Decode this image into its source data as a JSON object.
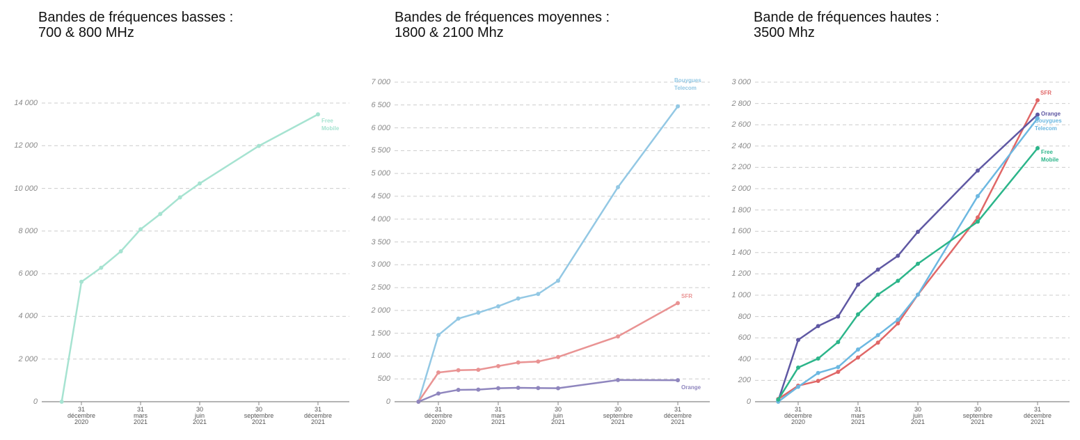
{
  "chart_data": [
    {
      "type": "line",
      "title": "Bandes de fréquences basses :",
      "subtitle": "700 & 800 MHz",
      "x": [
        -1,
        0,
        1,
        2,
        3,
        4,
        5,
        6,
        9,
        12
      ],
      "xlim": [
        -2,
        13.6
      ],
      "xticks": [
        {
          "value": 0,
          "label": "31 décembre 2020"
        },
        {
          "value": 3,
          "label": "31 mars 2021"
        },
        {
          "value": 6,
          "label": "30 juin 2021"
        },
        {
          "value": 9,
          "label": "30 septembre 2021"
        },
        {
          "value": 12,
          "label": "31 décembre 2021"
        }
      ],
      "ylim": [
        0,
        14000
      ],
      "yticks": [
        0,
        {
          "value": 2000,
          "label": "2 000"
        },
        {
          "value": 4000,
          "label": "4 000"
        },
        {
          "value": 6000,
          "label": "6 000"
        },
        {
          "value": 8000,
          "label": "8 000"
        },
        {
          "value": 10000,
          "label": "10 000"
        },
        {
          "value": 12000,
          "label": "12 000"
        },
        {
          "value": 14000,
          "label": "14 000"
        }
      ],
      "grid": true,
      "series": [
        {
          "name": "Free Mobile",
          "color": "#a6e3d1",
          "values": [
            0,
            5620,
            6280,
            7050,
            8080,
            8800,
            9580,
            10230,
            11990,
            13470
          ]
        }
      ]
    },
    {
      "type": "line",
      "title": "Bandes de fréquences moyennes :",
      "subtitle": "1800 & 2100 Mhz",
      "x": [
        -1,
        0,
        1,
        2,
        3,
        4,
        5,
        6,
        9,
        12
      ],
      "xlim": [
        -2,
        13.6
      ],
      "xticks": [
        {
          "value": 0,
          "label": "31 décembre 2020"
        },
        {
          "value": 3,
          "label": "31 mars 2021"
        },
        {
          "value": 6,
          "label": "30 juin 2021"
        },
        {
          "value": 9,
          "label": "30 septembre 2021"
        },
        {
          "value": 12,
          "label": "31 décembre 2021"
        }
      ],
      "ylim": [
        0,
        7000
      ],
      "yticks": [
        0,
        500,
        {
          "value": 1000,
          "label": "1 000"
        },
        {
          "value": 1500,
          "label": "1 500"
        },
        {
          "value": 2000,
          "label": "2 000"
        },
        {
          "value": 2500,
          "label": "2 500"
        },
        {
          "value": 3000,
          "label": "3 000"
        },
        {
          "value": 3500,
          "label": "3 500"
        },
        {
          "value": 4000,
          "label": "4 000"
        },
        {
          "value": 4500,
          "label": "4 500"
        },
        {
          "value": 5000,
          "label": "5 000"
        },
        {
          "value": 5500,
          "label": "5 500"
        },
        {
          "value": 6000,
          "label": "6 000"
        },
        {
          "value": 6500,
          "label": "6 500"
        },
        {
          "value": 7000,
          "label": "7 000"
        }
      ],
      "grid": true,
      "series": [
        {
          "name": "Bouygues Telecom",
          "color": "#93c8e4",
          "values": [
            0,
            1460,
            1820,
            1950,
            2090,
            2260,
            2360,
            2650,
            4700,
            6470
          ]
        },
        {
          "name": "SFR",
          "color": "#e99393",
          "values": [
            0,
            640,
            690,
            700,
            780,
            860,
            880,
            980,
            1430,
            2160
          ]
        },
        {
          "name": "Orange",
          "color": "#8f86be",
          "values": [
            0,
            180,
            260,
            265,
            295,
            305,
            300,
            295,
            475,
            470
          ]
        }
      ]
    },
    {
      "type": "line",
      "title": "Bande de fréquences hautes :",
      "subtitle": "3500 Mhz",
      "x": [
        -1,
        0,
        1,
        2,
        3,
        4,
        5,
        6,
        9,
        12
      ],
      "xlim": [
        -2,
        13.6
      ],
      "xticks": [
        {
          "value": 0,
          "label": "31 décembre 2020"
        },
        {
          "value": 3,
          "label": "31 mars 2021"
        },
        {
          "value": 6,
          "label": "30 juin 2021"
        },
        {
          "value": 9,
          "label": "30 septembre 2021"
        },
        {
          "value": 12,
          "label": "31 décembre 2021"
        }
      ],
      "ylim": [
        0,
        3000
      ],
      "yticks": [
        0,
        200,
        400,
        600,
        800,
        {
          "value": 1000,
          "label": "1 000"
        },
        {
          "value": 1200,
          "label": "1 200"
        },
        {
          "value": 1400,
          "label": "1 400"
        },
        {
          "value": 1600,
          "label": "1 600"
        },
        {
          "value": 1800,
          "label": "1 800"
        },
        {
          "value": 2000,
          "label": "2 000"
        },
        {
          "value": 2200,
          "label": "2 200"
        },
        {
          "value": 2400,
          "label": "2 400"
        },
        {
          "value": 2600,
          "label": "2 600"
        },
        {
          "value": 2800,
          "label": "2 800"
        },
        {
          "value": 3000,
          "label": "3 000"
        }
      ],
      "grid": true,
      "series": [
        {
          "name": "SFR",
          "color": "#e06767",
          "values": [
            25,
            150,
            195,
            280,
            415,
            555,
            735,
            1005,
            1730,
            2830
          ]
        },
        {
          "name": "Orange",
          "color": "#5f58a3",
          "values": [
            10,
            580,
            710,
            800,
            1100,
            1240,
            1370,
            1595,
            2170,
            2695
          ]
        },
        {
          "name": "Bouygues Telecom",
          "color": "#6cb8e1",
          "values": [
            0,
            140,
            270,
            325,
            490,
            625,
            770,
            1005,
            1930,
            2660
          ]
        },
        {
          "name": "Free Mobile",
          "color": "#2cb58a",
          "values": [
            20,
            320,
            405,
            560,
            820,
            1005,
            1135,
            1295,
            1690,
            2380
          ]
        }
      ]
    }
  ]
}
